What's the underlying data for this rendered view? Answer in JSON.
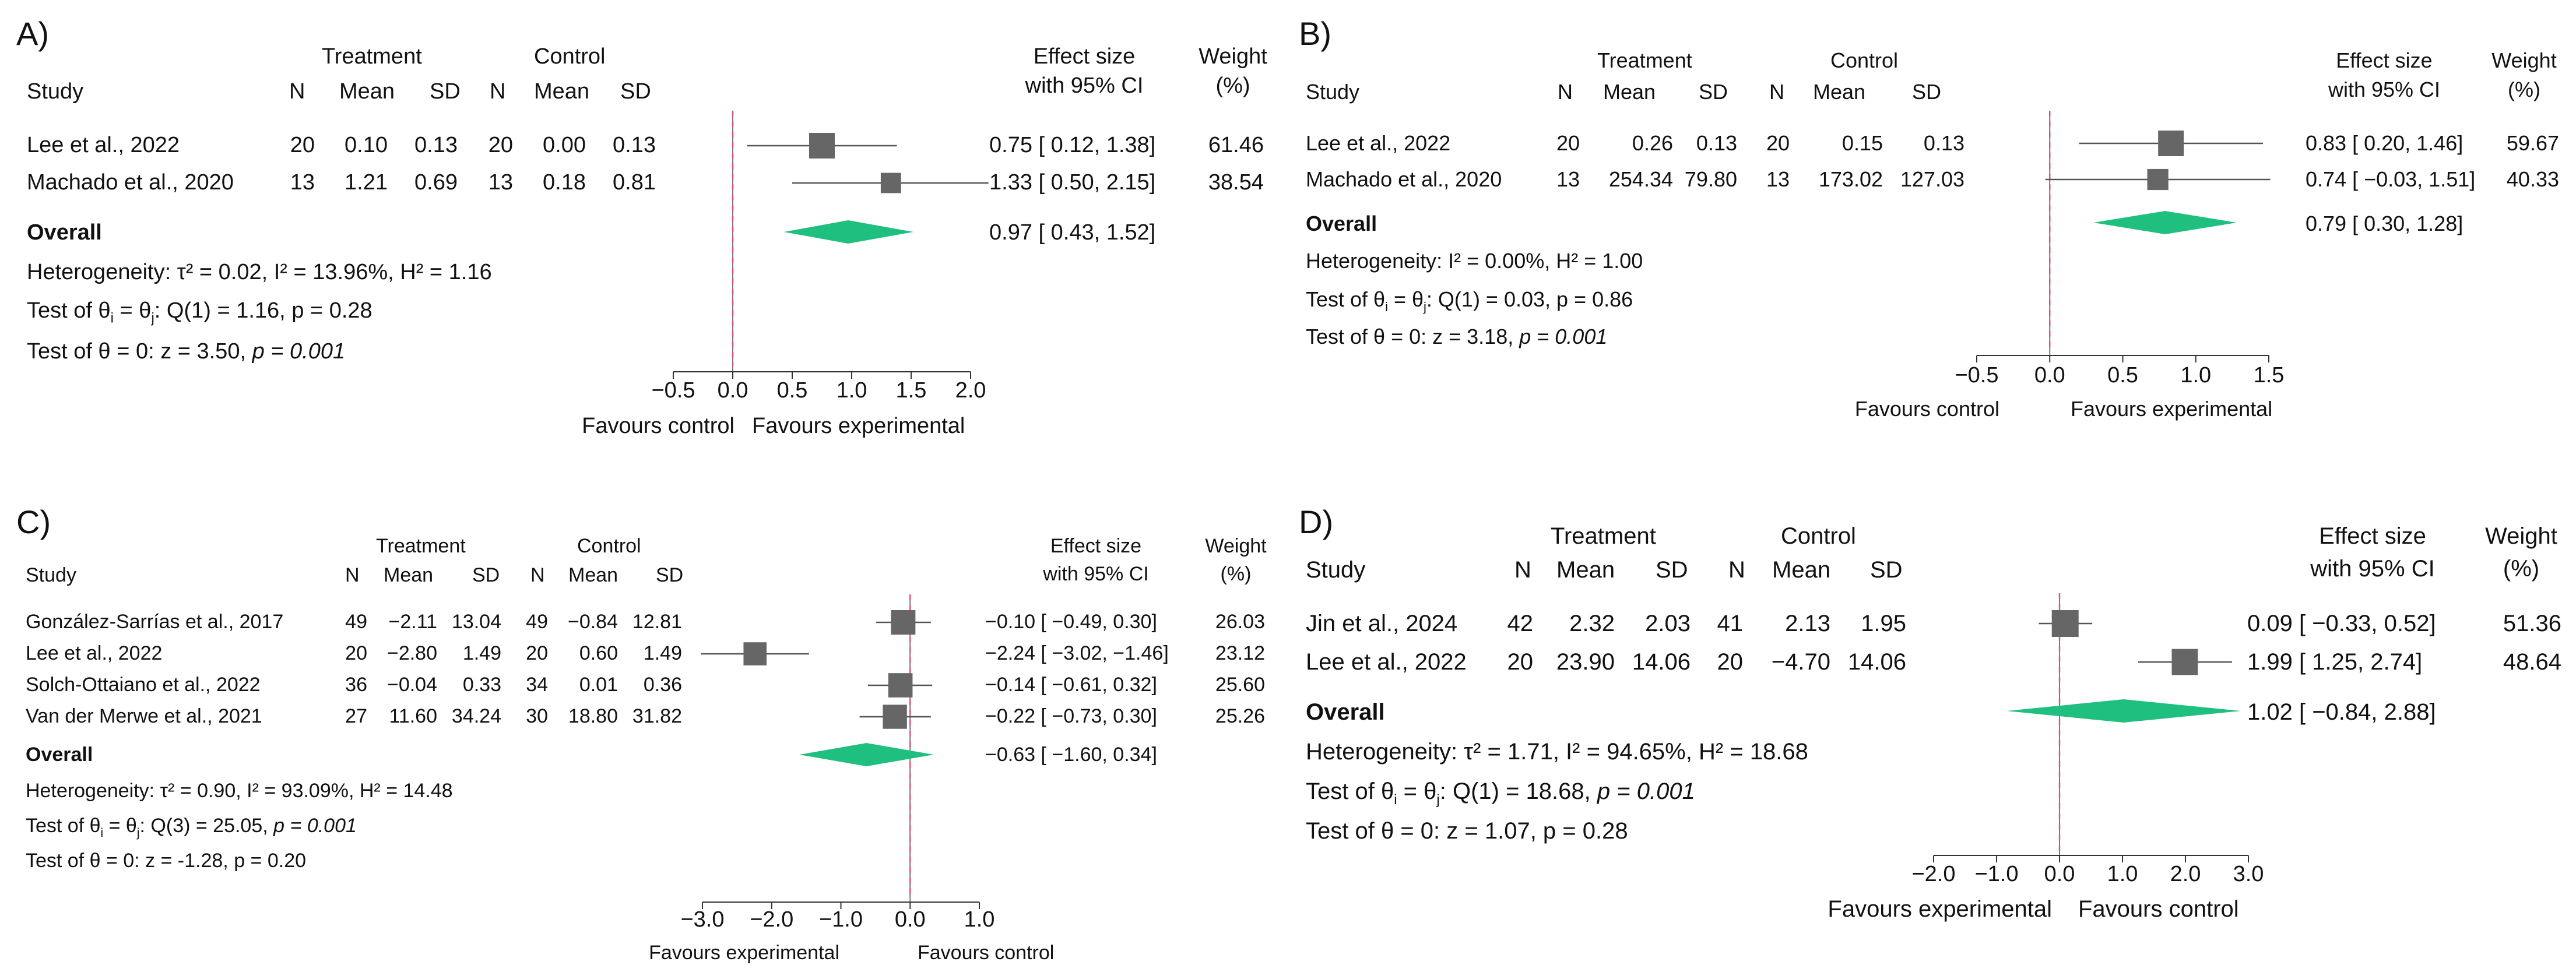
{
  "chart_data": [
    {
      "type": "forest",
      "panel_label": "A)",
      "headers": {
        "treatment": "Treatment",
        "control": "Control",
        "study": "Study",
        "n": "N",
        "mean": "Mean",
        "sd": "SD",
        "effect1": "Effect size",
        "effect2": "with 95% CI",
        "weight1": "Weight",
        "weight2": "(%)"
      },
      "studies": [
        {
          "study": "Lee et al., 2022",
          "t_n": "20",
          "t_mean": "0.10",
          "t_sd": "0.13",
          "c_n": "20",
          "c_mean": "0.00",
          "c_sd": "0.13",
          "es": 0.75,
          "lo": 0.12,
          "hi": 1.38,
          "weight": 61.46,
          "ci_text": "0.75 [ 0.12, 1.38]",
          "weight_text": "61.46"
        },
        {
          "study": "Machado et al., 2020",
          "t_n": "13",
          "t_mean": "1.21",
          "t_sd": "0.69",
          "c_n": "13",
          "c_mean": "0.18",
          "c_sd": "0.81",
          "es": 1.33,
          "lo": 0.5,
          "hi": 2.15,
          "weight": 38.54,
          "ci_text": "1.33 [ 0.50, 2.15]",
          "weight_text": "38.54"
        }
      ],
      "overall": {
        "label": "Overall",
        "es": 0.97,
        "lo": 0.43,
        "hi": 1.52,
        "ci_text": "0.97 [ 0.43, 1.52]"
      },
      "stats": {
        "heterogeneity": "Heterogeneity: τ² = 0.02, I² = 13.96%, H² = 1.16",
        "test_q_prefix": "Test of θ",
        "test_q_mid": " = θ",
        "test_q_suffix": ": Q(1) = 1.16, p = 0.28",
        "test_q_italic": "",
        "test_z_prefix": "Test of θ = 0: z = 3.50, ",
        "test_z_italic": "p = 0.001",
        "sub_i": "i",
        "sub_j": "j"
      },
      "xlim": [
        -0.5,
        2.0
      ],
      "ticks": [
        "−0.5",
        "0.0",
        "0.5",
        "1.0",
        "1.5",
        "2.0"
      ],
      "tick_values": [
        -0.5,
        0.0,
        0.5,
        1.0,
        1.5,
        2.0
      ],
      "favours_left": "Favours control",
      "favours_right": "Favours experimental"
    },
    {
      "type": "forest",
      "panel_label": "B)",
      "headers": {
        "treatment": "Treatment",
        "control": "Control",
        "study": "Study",
        "n": "N",
        "mean": "Mean",
        "sd": "SD",
        "effect1": "Effect size",
        "effect2": "with 95% CI",
        "weight1": "Weight",
        "weight2": "(%)"
      },
      "studies": [
        {
          "study": "Lee et al., 2022",
          "t_n": "20",
          "t_mean": "0.26",
          "t_sd": "0.13",
          "c_n": "20",
          "c_mean": "0.15",
          "c_sd": "0.13",
          "es": 0.83,
          "lo": 0.2,
          "hi": 1.46,
          "weight": 59.67,
          "ci_text": "0.83 [ 0.20, 1.46]",
          "weight_text": "59.67"
        },
        {
          "study": "Machado et al., 2020",
          "t_n": "13",
          "t_mean": "254.34",
          "t_sd": "79.80",
          "c_n": "13",
          "c_mean": "173.02",
          "c_sd": "127.03",
          "es": 0.74,
          "lo": -0.03,
          "hi": 1.51,
          "weight": 40.33,
          "ci_text": "0.74 [ −0.03, 1.51]",
          "weight_text": "40.33"
        }
      ],
      "overall": {
        "label": "Overall",
        "es": 0.79,
        "lo": 0.3,
        "hi": 1.28,
        "ci_text": "0.79 [ 0.30, 1.28]"
      },
      "stats": {
        "heterogeneity": "Heterogeneity: I² = 0.00%, H² = 1.00",
        "test_q_prefix": "Test of θ",
        "test_q_mid": " = θ",
        "test_q_suffix": ": Q(1) = 0.03, p = 0.86",
        "test_q_italic": "",
        "test_z_prefix": "Test of θ = 0: z = 3.18, ",
        "test_z_italic": "p = 0.001",
        "sub_i": "i",
        "sub_j": "j"
      },
      "xlim": [
        -0.5,
        1.5
      ],
      "ticks": [
        "−0.5",
        "0.0",
        "0.5",
        "1.0",
        "1.5"
      ],
      "tick_values": [
        -0.5,
        0.0,
        0.5,
        1.0,
        1.5
      ],
      "favours_left": "Favours control",
      "favours_right": "Favours experimental"
    },
    {
      "type": "forest",
      "panel_label": "C)",
      "headers": {
        "treatment": "Treatment",
        "control": "Control",
        "study": "Study",
        "n": "N",
        "mean": "Mean",
        "sd": "SD",
        "effect1": "Effect size",
        "effect2": "with 95% CI",
        "weight1": "Weight",
        "weight2": "(%)"
      },
      "studies": [
        {
          "study": "González-Sarrías et al., 2017",
          "t_n": "49",
          "t_mean": "−2.11",
          "t_sd": "13.04",
          "c_n": "49",
          "c_mean": "−0.84",
          "c_sd": "12.81",
          "es": -0.1,
          "lo": -0.49,
          "hi": 0.3,
          "weight": 26.03,
          "ci_text": "−0.10 [ −0.49, 0.30]",
          "weight_text": "26.03"
        },
        {
          "study": "Lee et al., 2022",
          "t_n": "20",
          "t_mean": "−2.80",
          "t_sd": "1.49",
          "c_n": "20",
          "c_mean": "0.60",
          "c_sd": "1.49",
          "es": -2.24,
          "lo": -3.02,
          "hi": -1.46,
          "weight": 23.12,
          "ci_text": "−2.24 [ −3.02, −1.46]",
          "weight_text": "23.12"
        },
        {
          "study": "Solch-Ottaiano et al., 2022",
          "t_n": "36",
          "t_mean": "−0.04",
          "t_sd": "0.33",
          "c_n": "34",
          "c_mean": "0.01",
          "c_sd": "0.36",
          "es": -0.14,
          "lo": -0.61,
          "hi": 0.32,
          "weight": 25.6,
          "ci_text": "−0.14 [ −0.61, 0.32]",
          "weight_text": "25.60"
        },
        {
          "study": "Van der Merwe et al., 2021",
          "t_n": "27",
          "t_mean": "11.60",
          "t_sd": "34.24",
          "c_n": "30",
          "c_mean": "18.80",
          "c_sd": "31.82",
          "es": -0.22,
          "lo": -0.73,
          "hi": 0.3,
          "weight": 25.26,
          "ci_text": "−0.22 [ −0.73, 0.30]",
          "weight_text": "25.26"
        }
      ],
      "overall": {
        "label": "Overall",
        "es": -0.63,
        "lo": -1.6,
        "hi": 0.34,
        "ci_text": "−0.63 [ −1.60, 0.34]"
      },
      "stats": {
        "heterogeneity": "Heterogeneity: τ² = 0.90, I² = 93.09%, H² = 14.48",
        "test_q_prefix": "Test of θ",
        "test_q_mid": " = θ",
        "test_q_suffix": ": Q(3) = 25.05, ",
        "test_q_italic": "p = 0.001",
        "test_z_prefix": "Test of θ = 0: z = -1.28, p = 0.20",
        "test_z_italic": "",
        "sub_i": "i",
        "sub_j": "j"
      },
      "xlim": [
        -3.0,
        1.0
      ],
      "ticks": [
        "−3.0",
        "−2.0",
        "−1.0",
        "0.0",
        "1.0"
      ],
      "tick_values": [
        -3.0,
        -2.0,
        -1.0,
        0.0,
        1.0
      ],
      "favours_left": "Favours experimental",
      "favours_right": "Favours control"
    },
    {
      "type": "forest",
      "panel_label": "D)",
      "headers": {
        "treatment": "Treatment",
        "control": "Control",
        "study": "Study",
        "n": "N",
        "mean": "Mean",
        "sd": "SD",
        "effect1": "Effect size",
        "effect2": "with 95% CI",
        "weight1": "Weight",
        "weight2": "(%)"
      },
      "studies": [
        {
          "study": "Jin et al., 2024",
          "t_n": "42",
          "t_mean": "2.32",
          "t_sd": "2.03",
          "c_n": "41",
          "c_mean": "2.13",
          "c_sd": "1.95",
          "es": 0.09,
          "lo": -0.33,
          "hi": 0.52,
          "weight": 51.36,
          "ci_text": "0.09 [ −0.33, 0.52]",
          "weight_text": "51.36"
        },
        {
          "study": "Lee et al., 2022",
          "t_n": "20",
          "t_mean": "23.90",
          "t_sd": "14.06",
          "c_n": "20",
          "c_mean": "−4.70",
          "c_sd": "14.06",
          "es": 1.99,
          "lo": 1.25,
          "hi": 2.74,
          "weight": 48.64,
          "ci_text": "1.99 [ 1.25, 2.74]",
          "weight_text": "48.64"
        }
      ],
      "overall": {
        "label": "Overall",
        "es": 1.02,
        "lo": -0.84,
        "hi": 2.88,
        "ci_text": "1.02 [ −0.84, 2.88]"
      },
      "stats": {
        "heterogeneity": "Heterogeneity: τ² = 1.71, I² = 94.65%, H² = 18.68",
        "test_q_prefix": "Test of θ",
        "test_q_mid": " = θ",
        "test_q_suffix": ": Q(1) = 18.68, ",
        "test_q_italic": "p = 0.001",
        "test_z_prefix": "Test of θ = 0: z = 1.07, p = 0.28",
        "test_z_italic": "",
        "sub_i": "i",
        "sub_j": "j"
      },
      "xlim": [
        -2.0,
        3.0
      ],
      "ticks": [
        "−2.0",
        "−1.0",
        "0.0",
        "1.0",
        "2.0",
        "3.0"
      ],
      "tick_values": [
        -2.0,
        -1.0,
        0.0,
        1.0,
        2.0,
        3.0
      ],
      "favours_left": "Favours experimental",
      "favours_right": "Favours control"
    }
  ],
  "colors": {
    "marker": "#666666",
    "diamond": "#1fbf7f",
    "null_line": "#e0527a",
    "ci_line": "#555555",
    "text": "#111111"
  }
}
